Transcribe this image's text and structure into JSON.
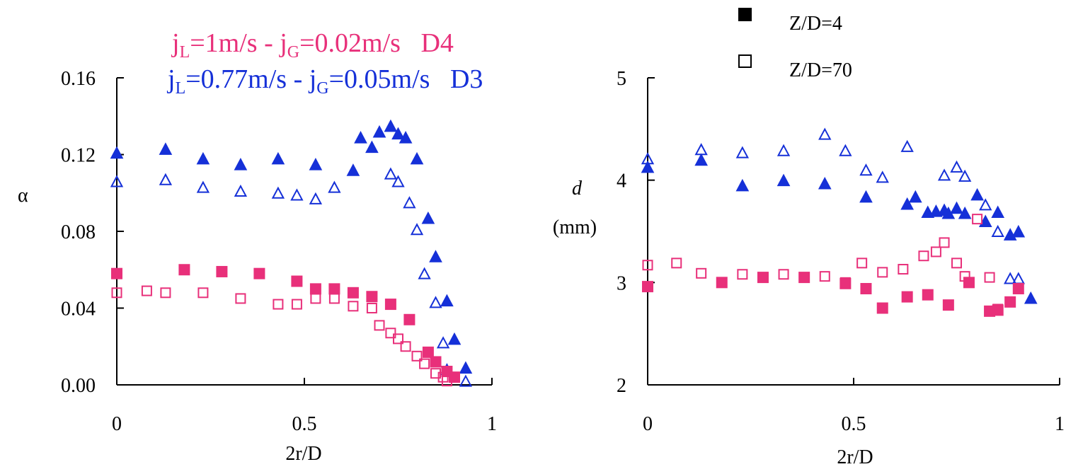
{
  "figure": {
    "annotation_pink": {
      "base": "j",
      "sub1": "L",
      "mid": "=1m/s - j",
      "sub2": "G",
      "tail": "=0.02m/s   D4",
      "color": "#e8307a"
    },
    "annotation_blue": {
      "base": "j",
      "sub1": "L",
      "mid": "=0.77m/s - j",
      "sub2": "G",
      "tail": "=0.05m/s   D3",
      "color": "#1530d8"
    },
    "legend": {
      "filled_label": "Z/D=4",
      "open_label": "Z/D=70"
    }
  },
  "chart_data": [
    {
      "type": "scatter",
      "xlabel": "2r/D",
      "ylabel": "α",
      "xlim": [
        0,
        1
      ],
      "ylim": [
        0,
        0.16
      ],
      "x_ticks": [
        "0",
        "0.5",
        "1"
      ],
      "y_ticks": [
        "0.00",
        "0.04",
        "0.08",
        "0.12",
        "0.16"
      ],
      "series": [
        {
          "marker": "triangle-filled",
          "color": "#1530d8",
          "x": [
            0,
            0.13,
            0.23,
            0.33,
            0.43,
            0.53,
            0.63,
            0.65,
            0.68,
            0.7,
            0.73,
            0.75,
            0.77,
            0.8,
            0.83,
            0.85,
            0.88,
            0.9,
            0.93
          ],
          "y": [
            0.121,
            0.123,
            0.118,
            0.115,
            0.118,
            0.115,
            0.112,
            0.129,
            0.124,
            0.132,
            0.135,
            0.131,
            0.129,
            0.118,
            0.087,
            0.067,
            0.044,
            0.024,
            0.009
          ]
        },
        {
          "marker": "triangle-open",
          "color": "#1530d8",
          "x": [
            0,
            0.13,
            0.23,
            0.33,
            0.43,
            0.48,
            0.53,
            0.58,
            0.73,
            0.75,
            0.78,
            0.8,
            0.82,
            0.85,
            0.87,
            0.88,
            0.93
          ],
          "y": [
            0.106,
            0.107,
            0.103,
            0.101,
            0.1,
            0.099,
            0.097,
            0.103,
            0.11,
            0.106,
            0.095,
            0.081,
            0.058,
            0.043,
            0.022,
            0.008,
            0.002
          ]
        },
        {
          "marker": "square-filled",
          "color": "#e8307a",
          "x": [
            0,
            0.18,
            0.28,
            0.38,
            0.48,
            0.53,
            0.58,
            0.63,
            0.68,
            0.73,
            0.78,
            0.83,
            0.85,
            0.88,
            0.9
          ],
          "y": [
            0.058,
            0.06,
            0.059,
            0.058,
            0.054,
            0.05,
            0.05,
            0.048,
            0.046,
            0.042,
            0.034,
            0.017,
            0.012,
            0.007,
            0.004
          ]
        },
        {
          "marker": "square-open",
          "color": "#e8307a",
          "x": [
            0,
            0.08,
            0.13,
            0.23,
            0.33,
            0.43,
            0.48,
            0.53,
            0.58,
            0.63,
            0.68,
            0.7,
            0.73,
            0.75,
            0.77,
            0.8,
            0.82,
            0.85,
            0.87,
            0.88
          ],
          "y": [
            0.048,
            0.049,
            0.048,
            0.048,
            0.045,
            0.042,
            0.042,
            0.045,
            0.045,
            0.041,
            0.04,
            0.031,
            0.027,
            0.024,
            0.02,
            0.015,
            0.011,
            0.006,
            0.004,
            0.002
          ]
        }
      ]
    },
    {
      "type": "scatter",
      "xlabel": "2r/D",
      "ylabel": "d",
      "ylabel_unit": "(mm)",
      "xlim": [
        0,
        1
      ],
      "ylim": [
        2,
        5
      ],
      "x_ticks": [
        "0",
        "0.5",
        "1"
      ],
      "y_ticks": [
        "2",
        "3",
        "4",
        "5"
      ],
      "series": [
        {
          "marker": "triangle-filled",
          "color": "#1530d8",
          "x": [
            0,
            0.13,
            0.23,
            0.33,
            0.43,
            0.53,
            0.63,
            0.65,
            0.68,
            0.7,
            0.72,
            0.73,
            0.75,
            0.77,
            0.8,
            0.82,
            0.85,
            0.88,
            0.9,
            0.93
          ],
          "y": [
            4.13,
            4.2,
            3.95,
            4.0,
            3.97,
            3.84,
            3.77,
            3.84,
            3.69,
            3.7,
            3.71,
            3.68,
            3.73,
            3.68,
            3.86,
            3.6,
            3.69,
            3.47,
            3.5,
            2.85
          ]
        },
        {
          "marker": "triangle-open",
          "color": "#1530d8",
          "x": [
            0,
            0.13,
            0.23,
            0.33,
            0.43,
            0.48,
            0.53,
            0.57,
            0.63,
            0.72,
            0.75,
            0.77,
            0.82,
            0.85,
            0.88,
            0.9
          ],
          "y": [
            4.21,
            4.3,
            4.27,
            4.29,
            4.45,
            4.29,
            4.1,
            4.03,
            4.33,
            4.05,
            4.13,
            4.04,
            3.76,
            3.5,
            3.04,
            3.04
          ]
        },
        {
          "marker": "square-filled",
          "color": "#e8307a",
          "x": [
            0,
            0.18,
            0.28,
            0.38,
            0.48,
            0.53,
            0.57,
            0.63,
            0.68,
            0.73,
            0.78,
            0.83,
            0.85,
            0.88,
            0.9
          ],
          "y": [
            2.96,
            3.0,
            3.05,
            3.05,
            2.99,
            2.94,
            2.75,
            2.86,
            2.88,
            2.78,
            3.0,
            2.72,
            2.73,
            2.81,
            2.94
          ]
        },
        {
          "marker": "square-open",
          "color": "#e8307a",
          "x": [
            0,
            0.07,
            0.13,
            0.23,
            0.33,
            0.43,
            0.48,
            0.52,
            0.57,
            0.62,
            0.67,
            0.7,
            0.72,
            0.75,
            0.77,
            0.8,
            0.83,
            0.85
          ],
          "y": [
            3.17,
            3.19,
            3.09,
            3.08,
            3.08,
            3.06,
            3.0,
            3.19,
            3.1,
            3.13,
            3.26,
            3.3,
            3.39,
            3.19,
            3.06,
            3.62,
            3.05,
            2.74
          ]
        }
      ]
    }
  ]
}
